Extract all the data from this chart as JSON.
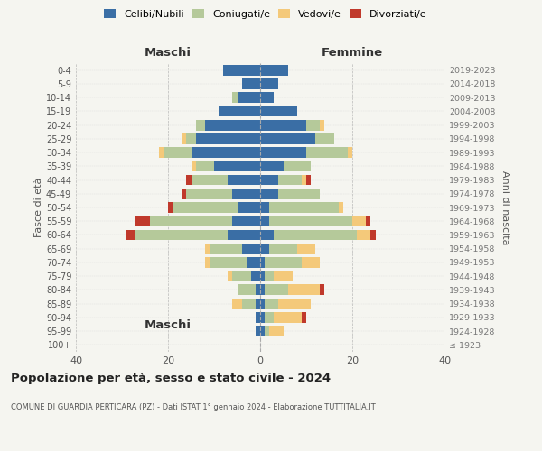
{
  "age_groups": [
    "100+",
    "95-99",
    "90-94",
    "85-89",
    "80-84",
    "75-79",
    "70-74",
    "65-69",
    "60-64",
    "55-59",
    "50-54",
    "45-49",
    "40-44",
    "35-39",
    "30-34",
    "25-29",
    "20-24",
    "15-19",
    "10-14",
    "5-9",
    "0-4"
  ],
  "birth_years": [
    "≤ 1923",
    "1924-1928",
    "1929-1933",
    "1934-1938",
    "1939-1943",
    "1944-1948",
    "1949-1953",
    "1954-1958",
    "1959-1963",
    "1964-1968",
    "1969-1973",
    "1974-1978",
    "1979-1983",
    "1984-1988",
    "1989-1993",
    "1994-1998",
    "1999-2003",
    "2004-2008",
    "2009-2013",
    "2014-2018",
    "2019-2023"
  ],
  "maschi": {
    "celibi": [
      0,
      1,
      1,
      1,
      1,
      2,
      3,
      4,
      7,
      6,
      5,
      6,
      7,
      10,
      15,
      14,
      12,
      9,
      5,
      4,
      8
    ],
    "coniugati": [
      0,
      0,
      0,
      3,
      4,
      4,
      8,
      7,
      20,
      18,
      14,
      10,
      8,
      4,
      6,
      2,
      2,
      0,
      1,
      0,
      0
    ],
    "vedovi": [
      0,
      0,
      0,
      2,
      0,
      1,
      1,
      1,
      0,
      0,
      0,
      0,
      0,
      1,
      1,
      1,
      0,
      0,
      0,
      0,
      0
    ],
    "divorziati": [
      0,
      0,
      0,
      0,
      0,
      0,
      0,
      0,
      2,
      3,
      1,
      1,
      1,
      0,
      0,
      0,
      0,
      0,
      0,
      0,
      0
    ]
  },
  "femmine": {
    "nubili": [
      0,
      1,
      1,
      1,
      1,
      1,
      1,
      2,
      3,
      2,
      2,
      4,
      4,
      5,
      10,
      12,
      10,
      8,
      3,
      4,
      6
    ],
    "coniugate": [
      0,
      1,
      2,
      3,
      5,
      2,
      8,
      6,
      18,
      18,
      15,
      9,
      5,
      6,
      9,
      4,
      3,
      0,
      0,
      0,
      0
    ],
    "vedove": [
      0,
      3,
      6,
      7,
      7,
      4,
      4,
      4,
      3,
      3,
      1,
      0,
      1,
      0,
      1,
      0,
      1,
      0,
      0,
      0,
      0
    ],
    "divorziate": [
      0,
      0,
      1,
      0,
      1,
      0,
      0,
      0,
      1,
      1,
      0,
      0,
      1,
      0,
      0,
      0,
      0,
      0,
      0,
      0,
      0
    ]
  },
  "colors": {
    "celibi_nubili": "#3a6ea5",
    "coniugati_e": "#b5c99a",
    "vedovi_e": "#f4c97a",
    "divorziati_e": "#c0392b"
  },
  "title": "Popolazione per età, sesso e stato civile - 2024",
  "subtitle": "COMUNE DI GUARDIA PERTICARA (PZ) - Dati ISTAT 1° gennaio 2024 - Elaborazione TUTTITALIA.IT",
  "xlabel_maschi": "Maschi",
  "xlabel_femmine": "Femmine",
  "ylabel_left": "Fasce di età",
  "ylabel_right": "Anni di nascita",
  "xlim": 40,
  "background_color": "#f5f5f0"
}
